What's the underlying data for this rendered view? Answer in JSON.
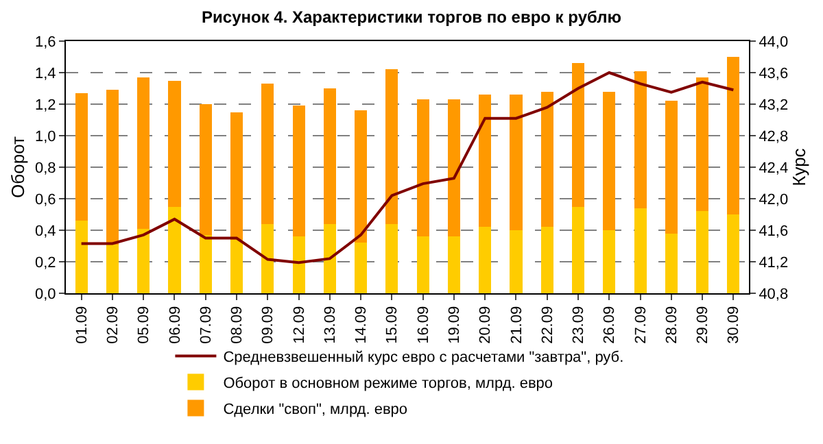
{
  "chart_data": {
    "type": "bar",
    "title": "Рисунок 4. Характеристики торгов по евро к рублю",
    "ylabel": "Оборот",
    "y2label": "Курс",
    "categories": [
      "01.09",
      "02.09",
      "05.09",
      "06.09",
      "07.09",
      "08.09",
      "09.09",
      "12.09",
      "13.09",
      "14.09",
      "15.09",
      "16.09",
      "19.09",
      "20.09",
      "21.09",
      "22.09",
      "23.09",
      "26.09",
      "27.09",
      "28.09",
      "29.09",
      "30.09"
    ],
    "stacked": true,
    "series": [
      {
        "name": "Оборот в основном режиме торгов, млрд. евро",
        "color": "#ffcc00",
        "values": [
          0.46,
          0.31,
          0.41,
          0.55,
          0.37,
          0.34,
          0.44,
          0.36,
          0.44,
          0.32,
          0.44,
          0.36,
          0.36,
          0.42,
          0.4,
          0.42,
          0.55,
          0.4,
          0.54,
          0.38,
          0.52,
          0.5
        ]
      },
      {
        "name": "Сделки \"своп\", млрд. евро",
        "color": "#ff9900",
        "values": [
          0.81,
          0.98,
          0.96,
          0.8,
          0.83,
          0.81,
          0.89,
          0.83,
          0.86,
          0.84,
          0.98,
          0.87,
          0.87,
          0.84,
          0.86,
          0.86,
          0.91,
          0.88,
          0.87,
          0.84,
          0.85,
          1.0
        ]
      },
      {
        "name": "Средневзвешенный курс евро с расчетами \"завтра\", руб.",
        "color": "#800000",
        "type": "line",
        "axis": "y2",
        "values": [
          41.43,
          41.43,
          41.54,
          41.74,
          41.5,
          41.5,
          41.23,
          41.19,
          41.24,
          41.54,
          42.04,
          42.19,
          42.26,
          43.02,
          43.02,
          43.16,
          43.4,
          43.6,
          43.46,
          43.35,
          43.48,
          43.38
        ]
      }
    ],
    "ylim": [
      0,
      1.6
    ],
    "yticks": [
      {
        "value": 0,
        "label": "0,0"
      },
      {
        "value": 0.2,
        "label": "0,2"
      },
      {
        "value": 0.4,
        "label": "0,4"
      },
      {
        "value": 0.6,
        "label": "0,6"
      },
      {
        "value": 0.8,
        "label": "0,8"
      },
      {
        "value": 1.0,
        "label": "1,0"
      },
      {
        "value": 1.2,
        "label": "1,2"
      },
      {
        "value": 1.4,
        "label": "1,4"
      },
      {
        "value": 1.6,
        "label": "1,6"
      }
    ],
    "y2lim": [
      40.8,
      44.0
    ],
    "y2ticks": [
      {
        "value": 40.8,
        "label": "40,8"
      },
      {
        "value": 41.2,
        "label": "41,2"
      },
      {
        "value": 41.6,
        "label": "41,6"
      },
      {
        "value": 42.0,
        "label": "42,0"
      },
      {
        "value": 42.4,
        "label": "42,4"
      },
      {
        "value": 42.8,
        "label": "42,8"
      },
      {
        "value": 43.2,
        "label": "43,2"
      },
      {
        "value": 43.6,
        "label": "43,6"
      },
      {
        "value": 44.0,
        "label": "44,0"
      }
    ],
    "grid": "y",
    "legend": "bottom",
    "marker": "none",
    "line_style": "solid"
  }
}
